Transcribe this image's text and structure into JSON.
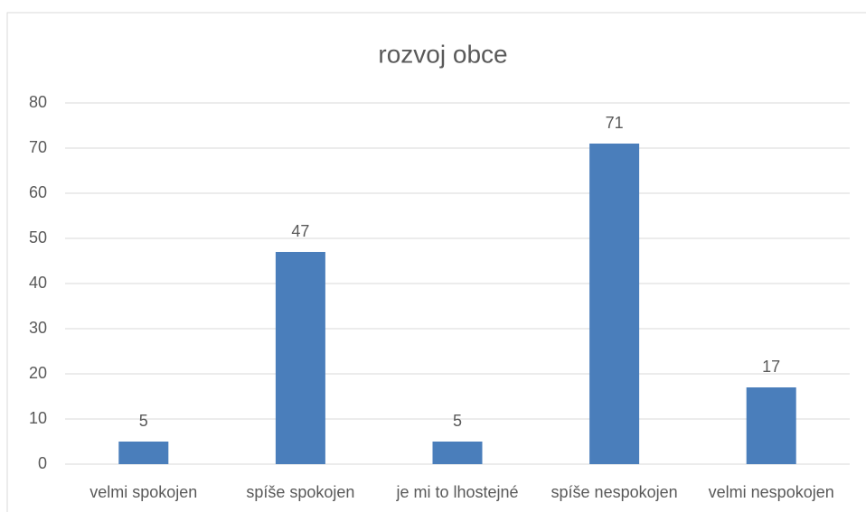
{
  "chart_data": {
    "type": "bar",
    "title": "rozvoj obce",
    "categories": [
      "velmi spokojen",
      "spíše spokojen",
      "je mi to lhostejné",
      "spíše nespokojen",
      "velmi nespokojen"
    ],
    "values": [
      5,
      47,
      5,
      71,
      17
    ],
    "color": "#4a7ebb",
    "ylim": [
      0,
      80
    ],
    "yticks": [
      0,
      10,
      20,
      30,
      40,
      50,
      60,
      70,
      80
    ],
    "grid": true
  }
}
